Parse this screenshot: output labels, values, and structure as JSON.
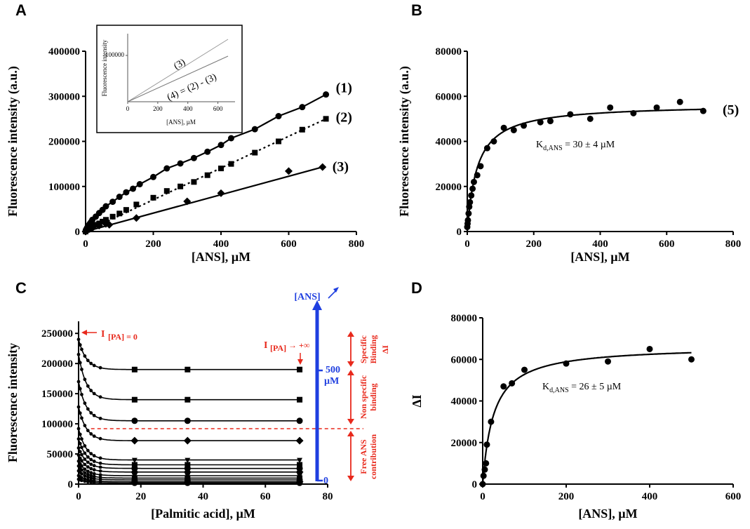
{
  "chart_data": [
    {
      "panel": "A",
      "type": "line",
      "xlabel": "[ANS], µM",
      "ylabel": "Fluorescence intensity (a.u.)",
      "xlim": [
        0,
        800
      ],
      "ylim": [
        0,
        400000
      ],
      "xticks": [
        "0",
        "200",
        "400",
        "600",
        "800"
      ],
      "yticks": [
        "0",
        "100000",
        "200000",
        "300000",
        "400000"
      ],
      "series": [
        {
          "name": "(1)",
          "marker": "circle",
          "linestyle": "solid",
          "x": [
            0,
            2,
            5,
            8,
            12,
            16,
            20,
            30,
            40,
            50,
            60,
            80,
            100,
            120,
            140,
            160,
            200,
            240,
            280,
            320,
            360,
            400,
            430,
            500,
            570,
            640,
            710
          ],
          "y": [
            0,
            5000,
            9000,
            13000,
            17000,
            21000,
            26000,
            33000,
            41000,
            48000,
            56000,
            66000,
            77000,
            87000,
            95000,
            105000,
            121000,
            140000,
            151000,
            163000,
            177000,
            192000,
            207000,
            227000,
            256000,
            276000,
            304000
          ]
        },
        {
          "name": "(2)",
          "marker": "square",
          "linestyle": "dotted",
          "x": [
            0,
            5,
            10,
            20,
            30,
            40,
            50,
            60,
            80,
            100,
            120,
            150,
            200,
            240,
            280,
            320,
            360,
            400,
            430,
            500,
            570,
            640,
            710
          ],
          "y": [
            0,
            4000,
            7000,
            12000,
            15000,
            18000,
            22000,
            26000,
            33000,
            40000,
            48000,
            60000,
            75000,
            90000,
            100000,
            110000,
            125000,
            140000,
            150000,
            175000,
            200000,
            226000,
            250000
          ]
        },
        {
          "name": "(3)",
          "marker": "diamond",
          "linestyle": "solid",
          "x": [
            0,
            10,
            20,
            40,
            60,
            70,
            150,
            300,
            400,
            600,
            700
          ],
          "y": [
            0,
            5000,
            8000,
            13000,
            17000,
            15000,
            30000,
            67000,
            85000,
            134000,
            143000
          ]
        }
      ],
      "inset": {
        "xlabel": "[ANS], µM",
        "ylabel": "Fluorescence intensity",
        "xticks": [
          "0",
          "200",
          "400",
          "600"
        ],
        "yticks": [
          "100000"
        ],
        "labels": [
          "(3)",
          "(4) = (2) - (3)"
        ]
      }
    },
    {
      "panel": "B",
      "type": "scatter",
      "xlabel": "[ANS], µM",
      "ylabel": "Fluorescence intensity (a.u.)",
      "xlim": [
        0,
        800
      ],
      "ylim": [
        0,
        80000
      ],
      "xticks": [
        "0",
        "200",
        "400",
        "600",
        "800"
      ],
      "yticks": [
        "0",
        "20000",
        "40000",
        "60000",
        "80000"
      ],
      "series": [
        {
          "name": "(5)",
          "x": [
            0,
            1,
            2,
            4,
            6,
            8,
            12,
            16,
            20,
            30,
            40,
            60,
            80,
            110,
            140,
            170,
            220,
            250,
            310,
            370,
            430,
            500,
            570,
            640,
            710
          ],
          "y": [
            2000,
            3500,
            5000,
            8000,
            11000,
            13000,
            16000,
            19000,
            22000,
            25000,
            29000,
            37000,
            40000,
            46000,
            45000,
            47000,
            48500,
            49000,
            52000,
            50000,
            55000,
            52500,
            55000,
            57500,
            53500
          ]
        }
      ],
      "fit_kd": 30,
      "fit_bmax": 56500,
      "annotation": "30 ± 4 µM"
    },
    {
      "panel": "C",
      "type": "line",
      "xlabel": "[Palmitic acid], µM",
      "ylabel": "Fluorescence intensity",
      "xlim": [
        0,
        80
      ],
      "ylim": [
        0,
        270000
      ],
      "xticks": [
        "0",
        "20",
        "40",
        "60",
        "80"
      ],
      "yticks": [
        "0",
        "50000",
        "100000",
        "150000",
        "200000",
        "250000"
      ],
      "x_points": [
        0,
        0.5,
        1,
        2,
        3,
        4,
        5,
        7,
        18,
        35,
        71
      ],
      "plateaus": [
        190000,
        140000,
        105000,
        72000,
        40000,
        32000,
        26000,
        20000,
        14000,
        10000,
        7000,
        4000,
        2000
      ],
      "starts": [
        240000,
        215000,
        170000,
        128000,
        92000,
        75000,
        60000,
        48000,
        38000,
        30000,
        22000,
        14000,
        8000
      ],
      "dashed_level": 92000,
      "concentration_marks": [
        "500",
        "µM",
        "0"
      ],
      "annotations": {
        "left": "I",
        "left_sub": "[PA] = 0",
        "right": "I",
        "right_sub": "[PA]",
        "right_suffix": "→ +∞",
        "delta": "ΔI",
        "specific": "Specific",
        "binding1": "Binding",
        "nonspecific": "Non specific",
        "binding2": "binding",
        "free": "Free ANS",
        "contribution": "contribution",
        "ans": "[ANS]"
      }
    },
    {
      "panel": "D",
      "type": "scatter",
      "xlabel": "[ANS], µM",
      "ylabel": "ΔI",
      "xlim": [
        0,
        600
      ],
      "ylim": [
        0,
        80000
      ],
      "xticks": [
        "0",
        "200",
        "400",
        "600"
      ],
      "yticks": [
        "0",
        "20000",
        "40000",
        "60000",
        "80000"
      ],
      "series": [
        {
          "name": "",
          "x": [
            0,
            2,
            5,
            8,
            10,
            20,
            50,
            70,
            100,
            200,
            300,
            400,
            500
          ],
          "y": [
            0,
            4000,
            7000,
            10000,
            19000,
            30000,
            47000,
            48500,
            55000,
            58000,
            59000,
            65000,
            60000
          ]
        }
      ],
      "fit_kd": 26,
      "fit_bmax": 66500,
      "annotation": "26 ± 5 µM"
    }
  ],
  "labels": {
    "panelA": "A",
    "panelB": "B",
    "panelC": "C",
    "panelD": "D",
    "kd_prefix": "K",
    "kd_sub": "d,ANS",
    "kd_eq": " = "
  }
}
